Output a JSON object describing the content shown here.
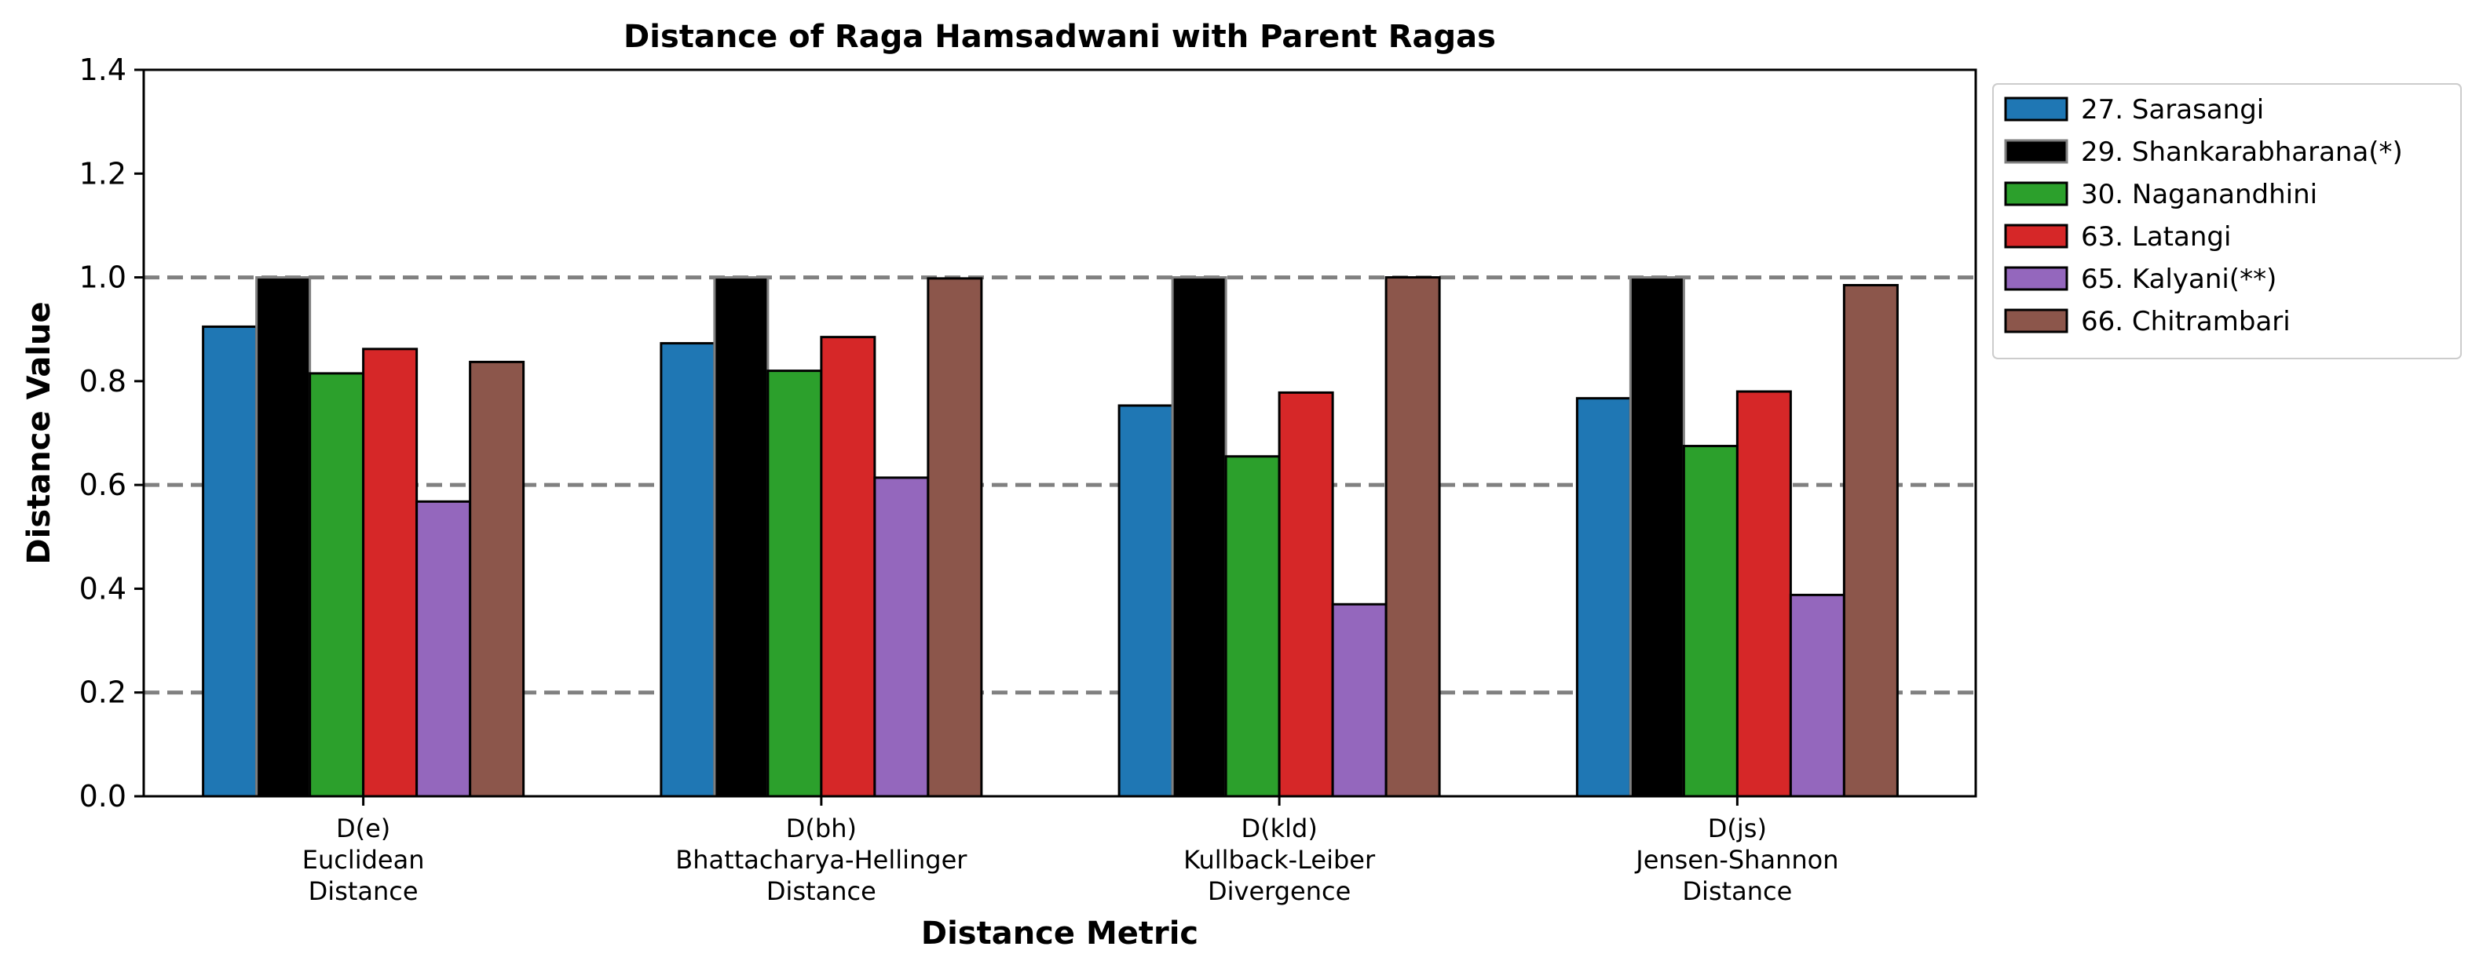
{
  "chart_data": {
    "type": "bar",
    "title": "Distance of Raga Hamsadwani with Parent Ragas",
    "xlabel": "Distance Metric",
    "ylabel": "Distance Value",
    "ylim": [
      0,
      1.4
    ],
    "yticks": [
      "0.0",
      "0.2",
      "0.4",
      "0.6",
      "0.8",
      "1.0",
      "1.2",
      "1.4"
    ],
    "reference_lines": [
      0.2,
      0.6,
      1.0
    ],
    "legend_position": "outside upper right",
    "categories": [
      [
        "D(e)",
        "Euclidean",
        "Distance"
      ],
      [
        "D(bh)",
        "Bhattacharya-Hellinger",
        "Distance"
      ],
      [
        "D(kld)",
        "Kullback-Leiber",
        "Divergence"
      ],
      [
        "D(js)",
        "Jensen-Shannon",
        "Distance"
      ]
    ],
    "series": [
      {
        "name": "27. Sarasangi",
        "color": "#1f77b4",
        "values": [
          0.905,
          0.873,
          0.753,
          0.767
        ]
      },
      {
        "name": "29. Shankarabharana(*)",
        "color": "#000000",
        "values": [
          1.0,
          1.0,
          1.0,
          1.0
        ]
      },
      {
        "name": "30. Naganandhini",
        "color": "#2ca02c",
        "values": [
          0.815,
          0.82,
          0.655,
          0.675
        ]
      },
      {
        "name": "63. Latangi",
        "color": "#d62728",
        "values": [
          0.862,
          0.885,
          0.778,
          0.78
        ]
      },
      {
        "name": "65. Kalyani(**)",
        "color": "#9467bd",
        "values": [
          0.568,
          0.614,
          0.37,
          0.388
        ]
      },
      {
        "name": "66. Chitrambari",
        "color": "#8c564b",
        "values": [
          0.837,
          0.998,
          1.0,
          0.985
        ]
      }
    ]
  }
}
